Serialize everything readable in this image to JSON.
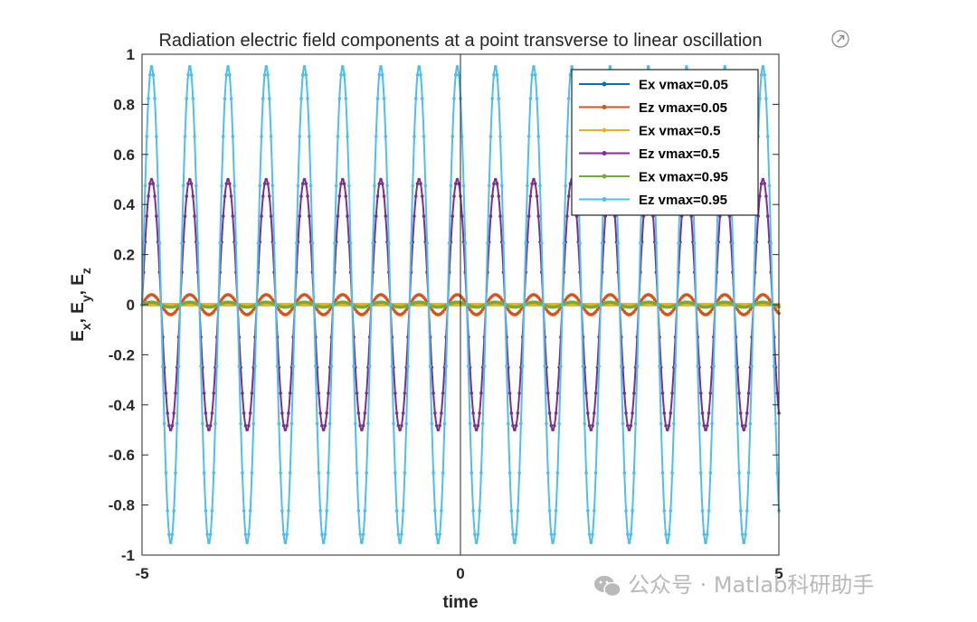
{
  "chart_data": {
    "type": "line",
    "title": "Radiation electric field components at a point transverse to linear oscillation",
    "xlabel": "time",
    "ylabel": "E_x, E_y, E_z",
    "xlim": [
      -5,
      5
    ],
    "ylim": [
      -1,
      1
    ],
    "x_ticks": [
      "-5",
      "0",
      "5"
    ],
    "y_ticks": [
      "1",
      "0.8",
      "0.6",
      "0.4",
      "0.2",
      "0",
      "-0.2",
      "-0.4",
      "-0.6",
      "-0.8",
      "-1"
    ],
    "grid": false,
    "legend_position": "top-right",
    "period": 0.6,
    "series": [
      {
        "name": "Ex vmax=0.05",
        "color": "#0072BD",
        "amplitude": 0.0,
        "offset": 0.0,
        "phase_max_at": -4.85
      },
      {
        "name": "Ez vmax=0.05",
        "color": "#D95319",
        "amplitude": 0.04,
        "offset": 0.0,
        "phase_max_at": -4.85
      },
      {
        "name": "Ex vmax=0.5",
        "color": "#EDB120",
        "amplitude": 0.0,
        "offset": 0.0,
        "phase_max_at": -4.85
      },
      {
        "name": "Ez vmax=0.5",
        "color": "#7E2F8E",
        "amplitude": 0.5,
        "offset": 0.0,
        "phase_max_at": -4.85
      },
      {
        "name": "Ex vmax=0.95",
        "color": "#77AC30",
        "amplitude": 0.01,
        "offset": 0.0,
        "phase_max_at": -4.85
      },
      {
        "name": "Ez vmax=0.95",
        "color": "#4DBEEE",
        "amplitude": 0.95,
        "offset": 0.0,
        "phase_max_at": -4.85
      }
    ]
  },
  "icons": {
    "title_icon": "external-link-icon"
  },
  "watermark": {
    "text": "公众号 · Matlab科研助手",
    "icon": "wechat-icon"
  }
}
